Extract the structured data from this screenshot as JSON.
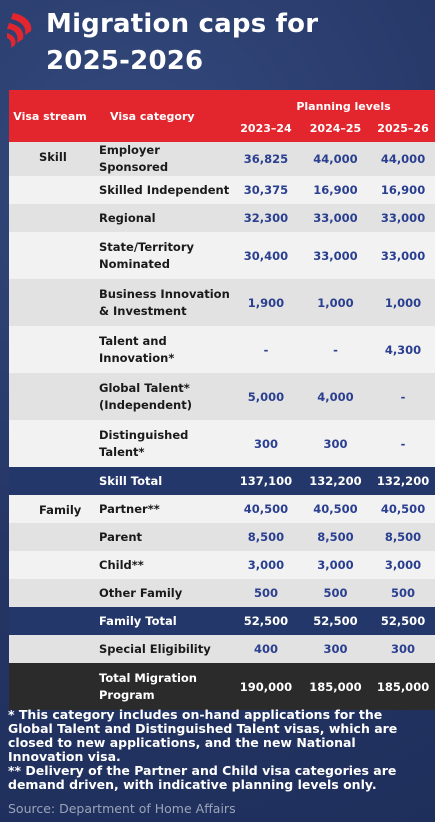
{
  "title_line1": "Migration caps for",
  "title_line2": "2025-2026",
  "logo_icon": "sbs-logo-icon",
  "colors": {
    "header_red": "#e3262d",
    "total_navy": "#23376a",
    "grand_total": "#2b2b2b",
    "number_blue": "#2a3f8f"
  },
  "table": {
    "col_stream": "Visa stream",
    "col_category": "Visa category",
    "planning_levels": "Planning levels",
    "years": [
      "2023–24",
      "2024–25",
      "2025–26"
    ],
    "rows": [
      {
        "stream": "Skill",
        "category": "Employer Sponsored",
        "v1": "36,825",
        "v2": "44,000",
        "v3": "44,000",
        "kind": "dark"
      },
      {
        "stream": "",
        "category": "Skilled Independent",
        "v1": "30,375",
        "v2": "16,900",
        "v3": "16,900",
        "kind": "light"
      },
      {
        "stream": "",
        "category": "Regional",
        "v1": "32,300",
        "v2": "33,000",
        "v3": "33,000",
        "kind": "dark"
      },
      {
        "stream": "",
        "category": "State/Territory Nominated",
        "v1": "30,400",
        "v2": "33,000",
        "v3": "33,000",
        "kind": "light"
      },
      {
        "stream": "",
        "category": "Business Innovation & Investment",
        "v1": "1,900",
        "v2": "1,000",
        "v3": "1,000",
        "kind": "dark"
      },
      {
        "stream": "",
        "category": "Talent and Innovation*",
        "v1": "-",
        "v2": "-",
        "v3": "4,300",
        "kind": "light"
      },
      {
        "stream": "",
        "category": "Global Talent* (Independent)",
        "v1": "5,000",
        "v2": "4,000",
        "v3": "-",
        "kind": "dark"
      },
      {
        "stream": "",
        "category": "Distinguished Talent*",
        "v1": "300",
        "v2": "300",
        "v3": "-",
        "kind": "light"
      },
      {
        "stream": "",
        "category": "Skill Total",
        "v1": "137,100",
        "v2": "132,200",
        "v3": "132,200",
        "kind": "total"
      },
      {
        "stream": "Family",
        "category": "Partner**",
        "v1": "40,500",
        "v2": "40,500",
        "v3": "40,500",
        "kind": "light"
      },
      {
        "stream": "",
        "category": "Parent",
        "v1": "8,500",
        "v2": "8,500",
        "v3": "8,500",
        "kind": "dark"
      },
      {
        "stream": "",
        "category": "Child**",
        "v1": "3,000",
        "v2": "3,000",
        "v3": "3,000",
        "kind": "light"
      },
      {
        "stream": "",
        "category": "Other Family",
        "v1": "500",
        "v2": "500",
        "v3": "500",
        "kind": "dark"
      },
      {
        "stream": "",
        "category": "Family Total",
        "v1": "52,500",
        "v2": "52,500",
        "v3": "52,500",
        "kind": "total"
      },
      {
        "stream": "",
        "category": "Special Eligibility",
        "v1": "400",
        "v2": "300",
        "v3": "300",
        "kind": "dark"
      },
      {
        "stream": "",
        "category": "Total Migration Program",
        "v1": "190,000",
        "v2": "185,000",
        "v3": "185,000",
        "kind": "grand"
      }
    ]
  },
  "footnote1": "* This category includes on-hand applications for the Global Talent and Distinguished Talent visas, which are closed to new applications, and the new National Innovation visa.",
  "footnote2": "** Delivery of the Partner and Child visa categories are demand driven, with indicative planning levels only.",
  "source": "Source: Department of Home Affairs"
}
